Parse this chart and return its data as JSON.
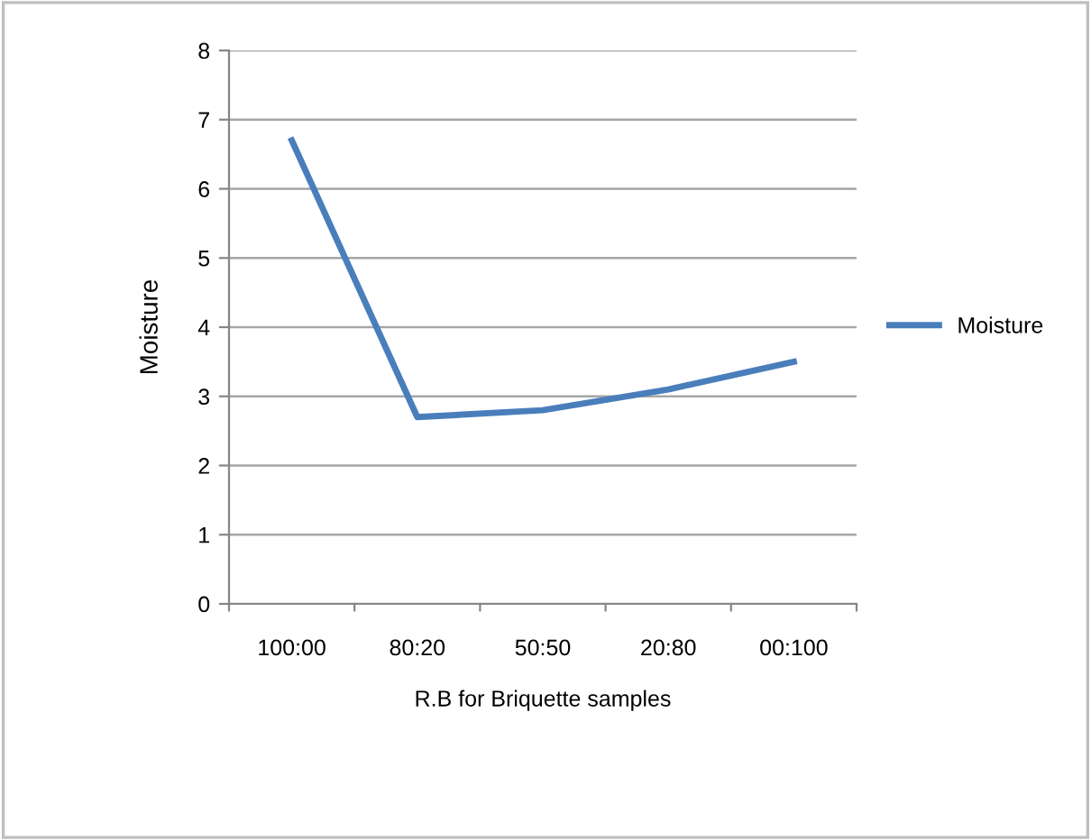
{
  "chart_data": {
    "type": "line",
    "xlabel": "R.B for Briquette samples",
    "ylabel": "Moisture",
    "categories": [
      "100:00",
      "80:20",
      "50:50",
      "20:80",
      "00:100"
    ],
    "series": [
      {
        "name": "Moisture",
        "color": "#4a7ebb",
        "values": [
          6.7,
          2.7,
          2.8,
          3.1,
          3.5
        ]
      }
    ],
    "ylim": [
      0,
      8
    ],
    "yticks": [
      0,
      1,
      2,
      3,
      4,
      5,
      6,
      7,
      8
    ],
    "grid": "y",
    "legend": "right",
    "marker": "none",
    "line_style": "solid"
  }
}
